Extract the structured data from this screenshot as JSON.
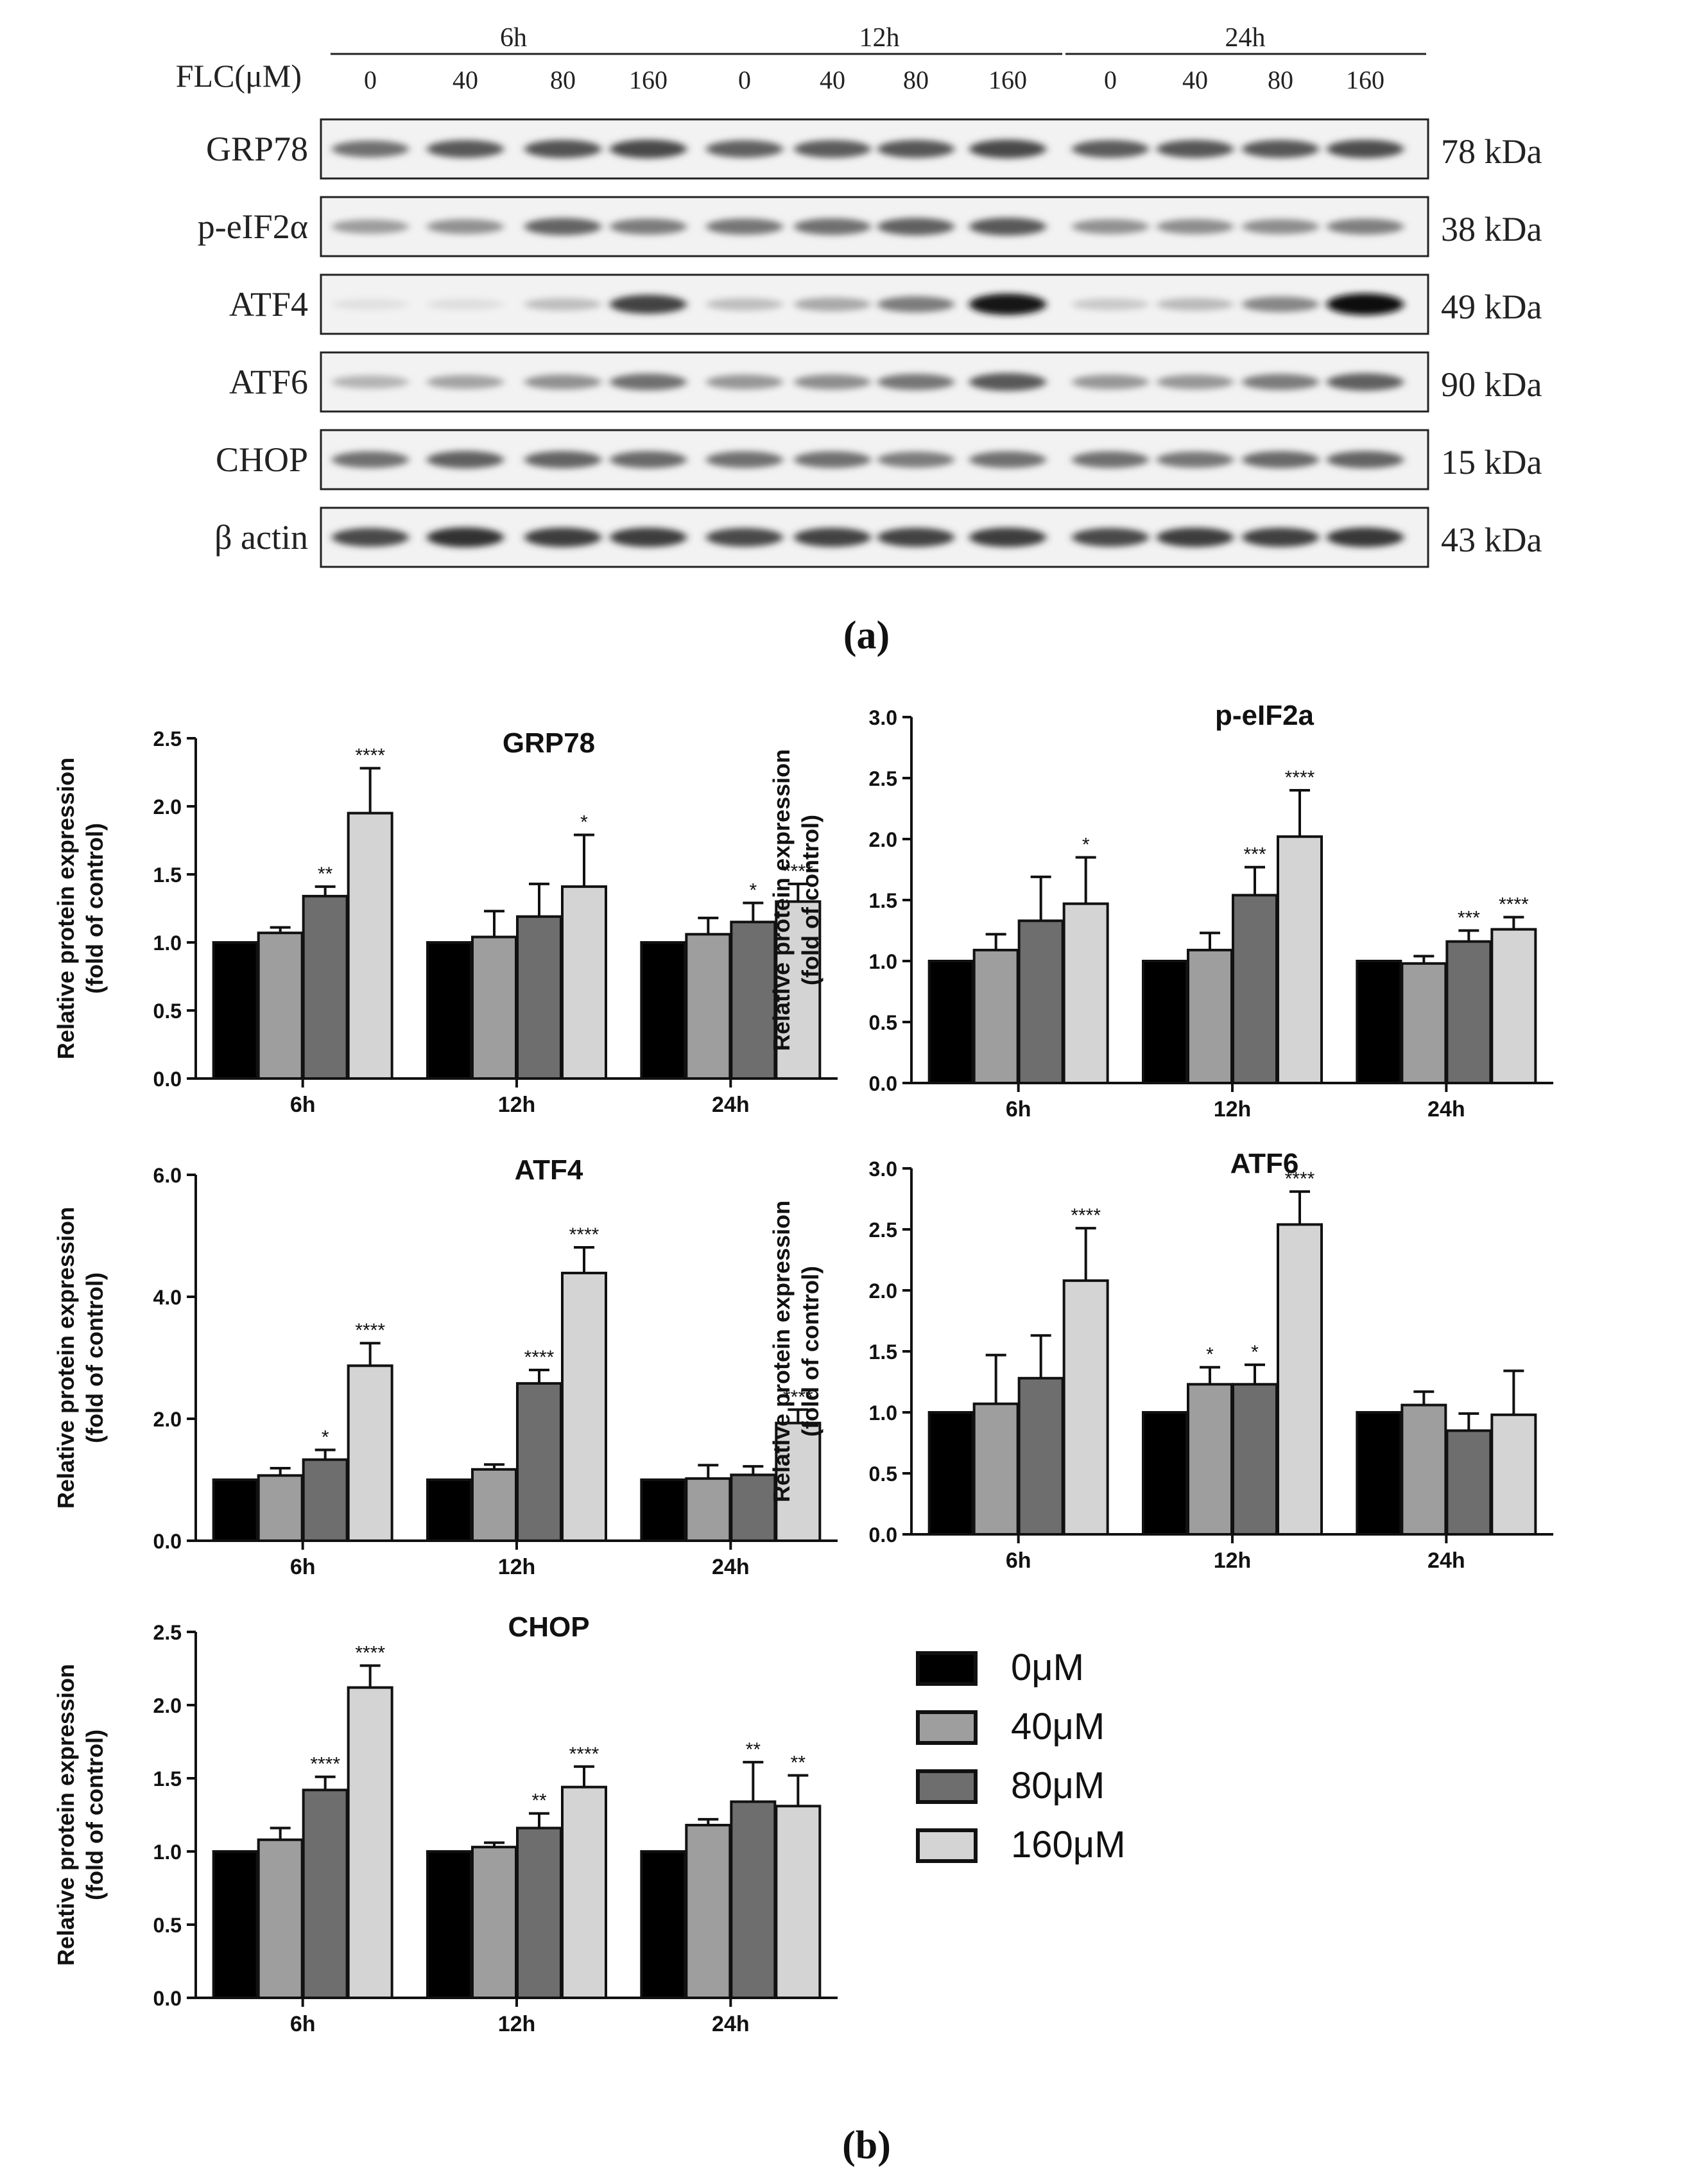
{
  "blot": {
    "flc_label": "FLC(μM)",
    "time_groups": [
      "6h",
      "12h",
      "24h"
    ],
    "doses": [
      "0",
      "40",
      "80",
      "160",
      "0",
      "40",
      "80",
      "160",
      "0",
      "40",
      "80",
      "160"
    ],
    "rows": [
      {
        "name": "GRP78",
        "kda": "78 kDa",
        "intensity": [
          0.55,
          0.65,
          0.68,
          0.72,
          0.62,
          0.64,
          0.66,
          0.72,
          0.64,
          0.66,
          0.66,
          0.7
        ]
      },
      {
        "name": "p-eIF2α",
        "kda": "38 kDa",
        "intensity": [
          0.35,
          0.4,
          0.6,
          0.5,
          0.52,
          0.55,
          0.62,
          0.65,
          0.4,
          0.42,
          0.42,
          0.48
        ]
      },
      {
        "name": "ATF4",
        "kda": "49 kDa",
        "intensity": [
          0.05,
          0.06,
          0.2,
          0.75,
          0.2,
          0.3,
          0.5,
          0.95,
          0.15,
          0.22,
          0.45,
          0.98
        ]
      },
      {
        "name": "ATF6",
        "kda": "90 kDa",
        "intensity": [
          0.25,
          0.32,
          0.4,
          0.55,
          0.38,
          0.42,
          0.52,
          0.65,
          0.38,
          0.38,
          0.5,
          0.62
        ]
      },
      {
        "name": "CHOP",
        "kda": "15 kDa",
        "intensity": [
          0.55,
          0.62,
          0.6,
          0.58,
          0.55,
          0.55,
          0.5,
          0.55,
          0.55,
          0.52,
          0.58,
          0.6
        ]
      },
      {
        "name": "β actin",
        "kda": "43 kDa",
        "intensity": [
          0.72,
          0.82,
          0.78,
          0.78,
          0.72,
          0.75,
          0.75,
          0.78,
          0.72,
          0.78,
          0.76,
          0.8
        ]
      }
    ]
  },
  "panel_a_label": "(a)",
  "panel_b_label": "(b)",
  "legend": {
    "entries": [
      "0μM",
      "40μM",
      "80μM",
      "160μM"
    ],
    "colors": [
      "#000000",
      "#9e9e9e",
      "#6e6e6e",
      "#d4d4d4"
    ]
  },
  "chart_data": [
    {
      "type": "bar",
      "title": "GRP78",
      "ylabel": [
        "Relative protein expression",
        "(fold of control)"
      ],
      "categories": [
        "6h",
        "12h",
        "24h"
      ],
      "ylim": [
        0,
        2.5
      ],
      "yticks": [
        "0.0",
        "0.5",
        "1.0",
        "1.5",
        "2.0",
        "2.5"
      ],
      "ytick_values": [
        0,
        0.5,
        1.0,
        1.5,
        2.0,
        2.5
      ],
      "series": [
        {
          "name": "0μM",
          "values": [
            1.0,
            1.0,
            1.0
          ],
          "err": [
            0,
            0,
            0
          ],
          "sig": [
            "",
            "",
            ""
          ]
        },
        {
          "name": "40μM",
          "values": [
            1.07,
            1.04,
            1.06
          ],
          "err": [
            0.04,
            0.19,
            0.12
          ],
          "sig": [
            "",
            "",
            ""
          ]
        },
        {
          "name": "80μM",
          "values": [
            1.34,
            1.19,
            1.15
          ],
          "err": [
            0.07,
            0.24,
            0.14
          ],
          "sig": [
            "**",
            "",
            "*"
          ]
        },
        {
          "name": "160μM",
          "values": [
            1.95,
            1.41,
            1.3
          ],
          "err": [
            0.33,
            0.38,
            0.13
          ],
          "sig": [
            "****",
            "*",
            "****"
          ]
        }
      ]
    },
    {
      "type": "bar",
      "title": "p-eIF2a",
      "ylabel": [
        "Relative protein expression",
        "(fold of control)"
      ],
      "categories": [
        "6h",
        "12h",
        "24h"
      ],
      "ylim": [
        0,
        3.0
      ],
      "yticks": [
        "0.0",
        "0.5",
        "1.0",
        "1.5",
        "2.0",
        "2.5",
        "3.0"
      ],
      "ytick_values": [
        0,
        0.5,
        1.0,
        1.5,
        2.0,
        2.5,
        3.0
      ],
      "series": [
        {
          "name": "0μM",
          "values": [
            1.0,
            1.0,
            1.0
          ],
          "err": [
            0,
            0,
            0
          ],
          "sig": [
            "",
            "",
            ""
          ]
        },
        {
          "name": "40μM",
          "values": [
            1.09,
            1.09,
            0.98
          ],
          "err": [
            0.13,
            0.14,
            0.06
          ],
          "sig": [
            "",
            "",
            ""
          ]
        },
        {
          "name": "80μM",
          "values": [
            1.33,
            1.54,
            1.16
          ],
          "err": [
            0.36,
            0.23,
            0.09
          ],
          "sig": [
            "",
            "***",
            "***"
          ]
        },
        {
          "name": "160μM",
          "values": [
            1.47,
            2.02,
            1.26
          ],
          "err": [
            0.38,
            0.38,
            0.1
          ],
          "sig": [
            "*",
            "****",
            "****"
          ]
        }
      ]
    },
    {
      "type": "bar",
      "title": "ATF4",
      "ylabel": [
        "Relative protein expression",
        "(fold of control)"
      ],
      "categories": [
        "6h",
        "12h",
        "24h"
      ],
      "ylim": [
        0,
        6.0
      ],
      "yticks": [
        "0.0",
        "2.0",
        "4.0",
        "6.0"
      ],
      "ytick_values": [
        0,
        2.0,
        4.0,
        6.0
      ],
      "series": [
        {
          "name": "0μM",
          "values": [
            1.0,
            1.0,
            1.0
          ],
          "err": [
            0,
            0,
            0
          ],
          "sig": [
            "",
            "",
            ""
          ]
        },
        {
          "name": "40μM",
          "values": [
            1.07,
            1.17,
            1.02
          ],
          "err": [
            0.12,
            0.08,
            0.22
          ],
          "sig": [
            "",
            "",
            ""
          ]
        },
        {
          "name": "80μM",
          "values": [
            1.33,
            2.58,
            1.08
          ],
          "err": [
            0.16,
            0.22,
            0.14
          ],
          "sig": [
            "*",
            "****",
            ""
          ]
        },
        {
          "name": "160μM",
          "values": [
            2.87,
            4.39,
            1.93
          ],
          "err": [
            0.37,
            0.42,
            0.22
          ],
          "sig": [
            "****",
            "****",
            "****"
          ]
        }
      ]
    },
    {
      "type": "bar",
      "title": "ATF6",
      "ylabel": [
        "Relative protein expression",
        "(fold of control)"
      ],
      "categories": [
        "6h",
        "12h",
        "24h"
      ],
      "ylim": [
        0,
        3.0
      ],
      "yticks": [
        "0.0",
        "0.5",
        "1.0",
        "1.5",
        "2.0",
        "2.5",
        "3.0"
      ],
      "ytick_values": [
        0,
        0.5,
        1.0,
        1.5,
        2.0,
        2.5,
        3.0
      ],
      "series": [
        {
          "name": "0μM",
          "values": [
            1.0,
            1.0,
            1.0
          ],
          "err": [
            0,
            0,
            0
          ],
          "sig": [
            "",
            "",
            ""
          ]
        },
        {
          "name": "40μM",
          "values": [
            1.07,
            1.23,
            1.06
          ],
          "err": [
            0.4,
            0.14,
            0.11
          ],
          "sig": [
            "",
            "*",
            ""
          ]
        },
        {
          "name": "80μM",
          "values": [
            1.28,
            1.23,
            0.85
          ],
          "err": [
            0.35,
            0.16,
            0.14
          ],
          "sig": [
            "",
            "*",
            ""
          ]
        },
        {
          "name": "160μM",
          "values": [
            2.08,
            2.54,
            0.98
          ],
          "err": [
            0.43,
            0.27,
            0.36
          ],
          "sig": [
            "****",
            "****",
            ""
          ]
        }
      ]
    },
    {
      "type": "bar",
      "title": "CHOP",
      "ylabel": [
        "Relative protein expression",
        "(fold of control)"
      ],
      "categories": [
        "6h",
        "12h",
        "24h"
      ],
      "ylim": [
        0,
        2.5
      ],
      "yticks": [
        "0.0",
        "0.5",
        "1.0",
        "1.5",
        "2.0",
        "2.5"
      ],
      "ytick_values": [
        0,
        0.5,
        1.0,
        1.5,
        2.0,
        2.5
      ],
      "series": [
        {
          "name": "0μM",
          "values": [
            1.0,
            1.0,
            1.0
          ],
          "err": [
            0,
            0,
            0
          ],
          "sig": [
            "",
            "",
            ""
          ]
        },
        {
          "name": "40μM",
          "values": [
            1.08,
            1.03,
            1.18
          ],
          "err": [
            0.08,
            0.03,
            0.04
          ],
          "sig": [
            "",
            "",
            ""
          ]
        },
        {
          "name": "80μM",
          "values": [
            1.42,
            1.16,
            1.34
          ],
          "err": [
            0.09,
            0.1,
            0.27
          ],
          "sig": [
            "****",
            "**",
            "**"
          ]
        },
        {
          "name": "160μM",
          "values": [
            2.12,
            1.44,
            1.31
          ],
          "err": [
            0.15,
            0.14,
            0.21
          ],
          "sig": [
            "****",
            "****",
            "**"
          ]
        }
      ]
    }
  ]
}
